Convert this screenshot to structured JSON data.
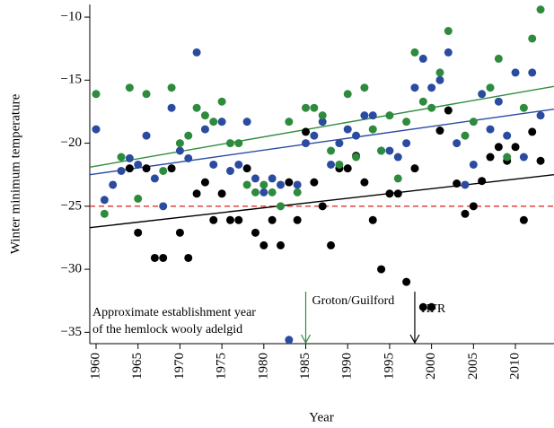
{
  "chart_data": {
    "type": "scatter",
    "xlabel": "Year",
    "ylabel": "Winter minimum temperature",
    "xlim": [
      1959.25,
      2014.6
    ],
    "ylim": [
      -35.9,
      -9.0
    ],
    "xticks": [
      1960,
      1965,
      1970,
      1975,
      1980,
      1985,
      1990,
      1995,
      2000,
      2005,
      2010
    ],
    "yticks": [
      {
        "value": -10,
        "label": "−10"
      },
      {
        "value": -15,
        "label": "−15"
      },
      {
        "value": -20,
        "label": "−20"
      },
      {
        "value": -25,
        "label": "−25"
      },
      {
        "value": -30,
        "label": "−30"
      },
      {
        "value": -35,
        "label": "−35"
      }
    ],
    "x": [
      1960,
      1961,
      1962,
      1963,
      1964,
      1965,
      1966,
      1967,
      1968,
      1969,
      1970,
      1971,
      1972,
      1973,
      1974,
      1975,
      1976,
      1977,
      1978,
      1979,
      1980,
      1981,
      1982,
      1983,
      1984,
      1985,
      1986,
      1987,
      1988,
      1989,
      1990,
      1991,
      1992,
      1993,
      1994,
      1995,
      1996,
      1997,
      1998,
      1999,
      2000,
      2001,
      2002,
      2003,
      2004,
      2005,
      2006,
      2007,
      2008,
      2009,
      2010,
      2011,
      2012,
      2013
    ],
    "series": [
      {
        "color": "#000000",
        "values": [
          null,
          null,
          null,
          null,
          -22,
          -27.1,
          -22,
          -29.1,
          -29.1,
          -22,
          -27.1,
          -29.1,
          -24,
          -23.1,
          -26.1,
          -24,
          -26.1,
          -26.1,
          -22,
          -27.1,
          -28.1,
          -26.1,
          -28.1,
          -23.1,
          -26.1,
          -19.1,
          -23.1,
          -25,
          -28.1,
          -22,
          -22,
          -21,
          -23.1,
          -26.1,
          -30,
          -24,
          -24,
          -31,
          -22,
          -33,
          -33,
          -19,
          -17.4,
          -23.2,
          -25.6,
          -25,
          -23,
          -21.1,
          -20.3,
          -21.4,
          -20.3,
          -26.1,
          -19.1,
          -21.4
        ]
      },
      {
        "color": "#2a4ba0",
        "values": [
          -18.9,
          -24.5,
          -23.3,
          -22.2,
          -21.2,
          -21.7,
          -19.4,
          -22.8,
          -25,
          -17.2,
          -20.6,
          -21.2,
          -12.8,
          -18.9,
          -21.7,
          -18.3,
          -22.2,
          -21.7,
          -18.3,
          -22.8,
          -23.9,
          -22.8,
          -23.3,
          -35.6,
          -23.3,
          -20,
          -19.4,
          -18.3,
          -21.7,
          -20,
          -18.9,
          -19.4,
          -17.8,
          -17.8,
          -20.6,
          -20.6,
          -21.1,
          -20,
          -15.6,
          -13.3,
          -15.6,
          -15,
          -12.8,
          -20,
          -23.3,
          -21.7,
          -16.1,
          -18.9,
          -16.7,
          -19.4,
          -14.4,
          -21.1,
          -14.4,
          -17.8
        ]
      },
      {
        "color": "#2e8b3e",
        "values": [
          -16.1,
          -25.6,
          null,
          -21.1,
          -15.6,
          -24.4,
          -16.1,
          null,
          -22.2,
          -15.6,
          -20,
          -19.4,
          -17.2,
          -17.8,
          -18.3,
          -16.7,
          -20,
          -20,
          -23.3,
          -23.9,
          -23.3,
          -23.9,
          -25,
          -18.3,
          -23.9,
          -17.2,
          -17.2,
          -17.8,
          -20.6,
          -21.7,
          -16.1,
          -21.1,
          -15.6,
          -18.9,
          -20.6,
          -17.8,
          -22.8,
          -18.3,
          -12.8,
          -16.7,
          -17.2,
          -14.4,
          -11.1,
          null,
          -19.4,
          -18.3,
          null,
          -15.6,
          -13.3,
          -21.1,
          null,
          -17.2,
          -11.7,
          -9.4
        ]
      }
    ],
    "trend_lines": [
      {
        "color": "#000000",
        "x": [
          1959.25,
          2014.6
        ],
        "y": [
          -26.7,
          -22.5
        ]
      },
      {
        "color": "#2a4ba0",
        "x": [
          1959.25,
          2014.6
        ],
        "y": [
          -22.5,
          -17.3
        ]
      },
      {
        "color": "#2e8b3e",
        "x": [
          1959.25,
          2014.6
        ],
        "y": [
          -21.9,
          -15.5
        ]
      }
    ],
    "reference_line": {
      "y": -25,
      "color": "#e0302a"
    },
    "annotations": [
      {
        "lines": [
          "Approximate establishment year",
          "of the hemlock wooly adelgid"
        ]
      },
      {
        "text": "Groton/Guilford",
        "x": 1985,
        "color": "#2e8b3e"
      },
      {
        "text": "HFR",
        "x": 1998,
        "color": "#000000"
      }
    ]
  }
}
